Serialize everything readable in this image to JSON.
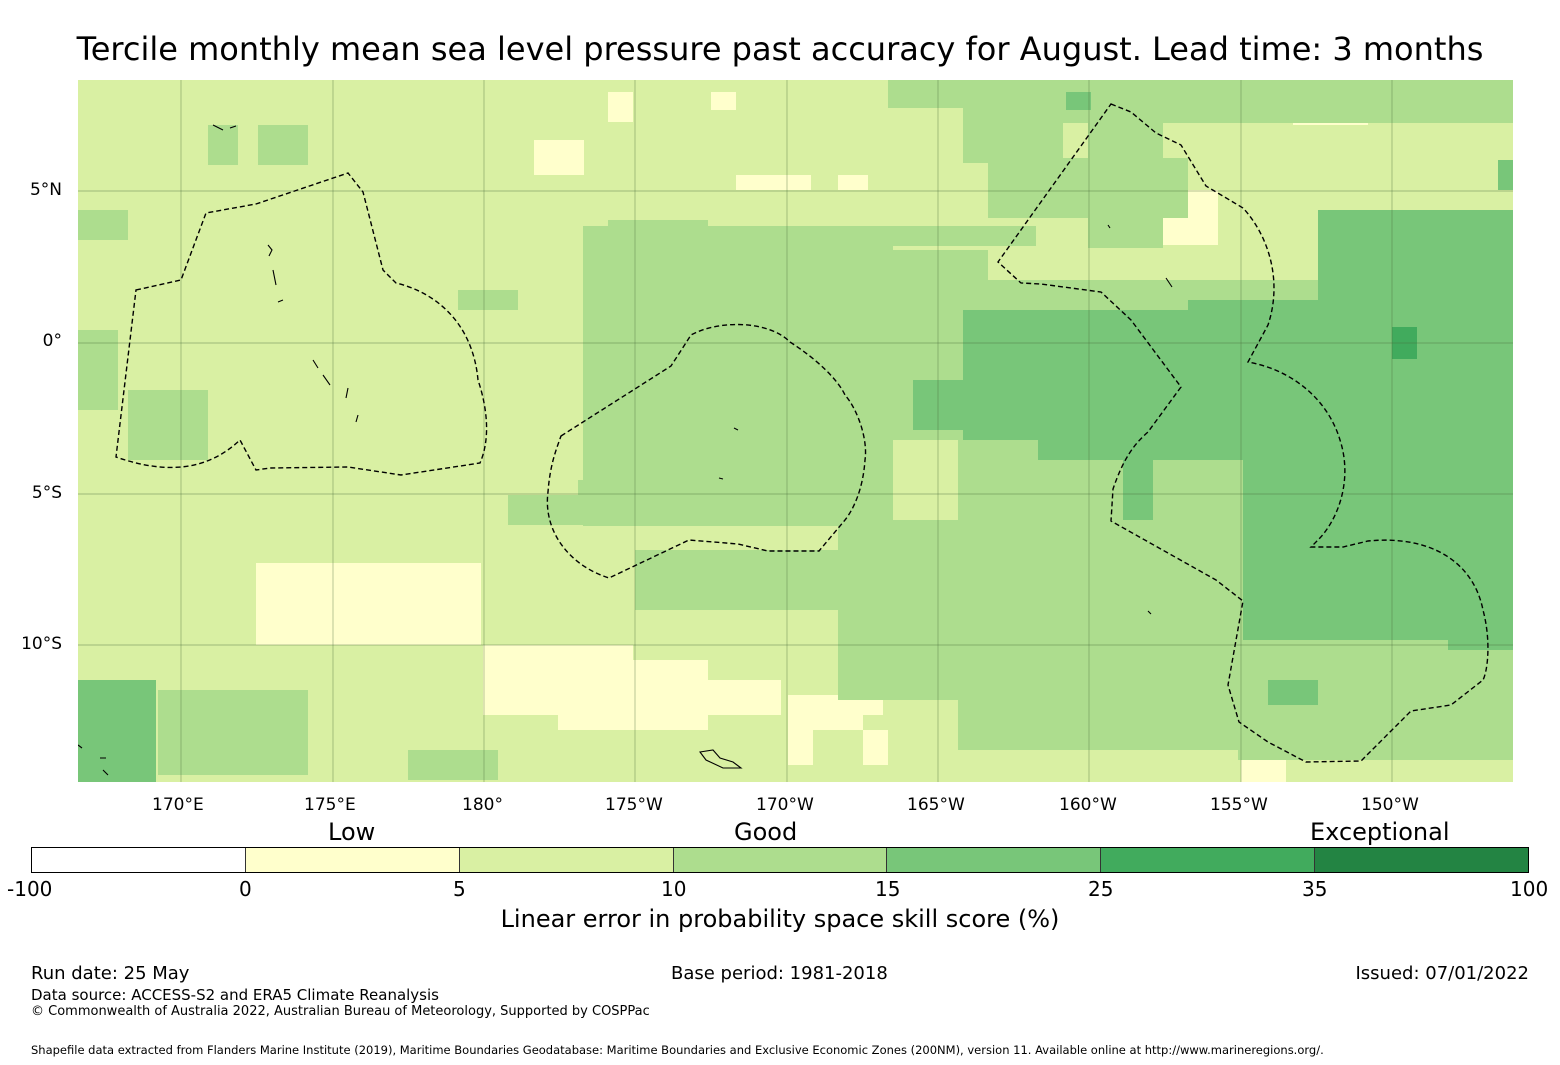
{
  "title": "Tercile monthly mean sea level pressure past accuracy for August. Lead time: 3 months",
  "map": {
    "lat_labels": [
      "5°N",
      "0°",
      "5°S",
      "10°S"
    ],
    "lon_labels": [
      "170°E",
      "175°E",
      "180°",
      "175°W",
      "170°W",
      "165°W",
      "160°W",
      "155°W",
      "150°W"
    ],
    "background_color": "#d9f0a3",
    "eez_line_style": "dashed"
  },
  "legend": {
    "categories": [
      "Low",
      "Good",
      "Exceptional"
    ],
    "ticks": [
      "-100",
      "0",
      "5",
      "10",
      "15",
      "25",
      "35",
      "100"
    ],
    "colors": [
      "#ffffff",
      "#ffffcc",
      "#d9f0a3",
      "#addd8e",
      "#78c679",
      "#41ab5d",
      "#238443"
    ],
    "title": "Linear error in probability space skill score (%)"
  },
  "footer": {
    "run_date": "Run date: 25 May",
    "base_period": "Base period: 1981-2018",
    "issued": "Issued: 07/01/2022",
    "data_source": "Data source: ACCESS-S2 and ERA5 Climate Reanalysis",
    "copyright": "© Commonwealth of Australia 2022, Australian Bureau of Meteorology, Supported by COSPPac",
    "shapefile": "Shapefile data extracted from Flanders Marine Institute (2019), Maritime Boundaries Geodatabase: Maritime Boundaries and Exclusive Economic Zones (200NM), version 11. Available online at http://www.marineregions.org/."
  }
}
